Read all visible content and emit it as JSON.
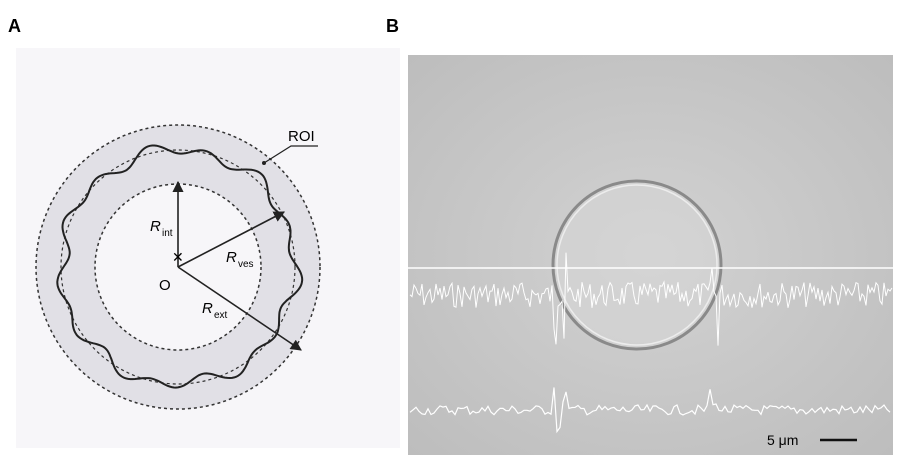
{
  "panels": [
    {
      "label": "A",
      "annotations": {
        "roi": "ROI",
        "origin": "O",
        "r_int": {
          "symbol": "R",
          "subscript": "int"
        },
        "r_ves": {
          "symbol": "R",
          "subscript": "ves"
        },
        "r_ext": {
          "symbol": "R",
          "subscript": "ext"
        }
      }
    },
    {
      "label": "B",
      "scale_bar": "5 μm"
    }
  ]
}
